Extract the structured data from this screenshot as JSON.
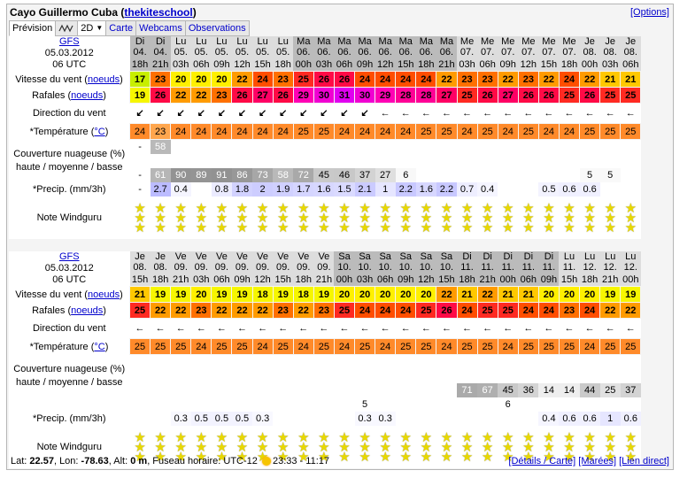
{
  "title": {
    "location": "Cayo Guillermo Cuba",
    "school": "thekiteschool",
    "options": "[Options]"
  },
  "toolbar": {
    "prevision": "Prévision",
    "mode": "2D",
    "carte": "Carte",
    "webcams": "Webcams",
    "observations": "Observations"
  },
  "labels": {
    "wind": "Vitesse du vent",
    "gust": "Rafales",
    "unit": "noeuds",
    "dir": "Direction du vent",
    "temp": "*Température",
    "temp_unit": "°C",
    "cloud_a": "Couverture nuageuse (%)",
    "cloud_b": "haute / moyenne / basse",
    "precip": "*Precip. (mm/3h)",
    "rating": "Note Windguru"
  },
  "sections": [
    {
      "model": "GFS",
      "date": "05.03.2012",
      "utc": "06 UTC",
      "days": [
        "Di",
        "Di",
        "Lu",
        "Lu",
        "Lu",
        "Lu",
        "Lu",
        "Lu",
        "Ma",
        "Ma",
        "Ma",
        "Ma",
        "Ma",
        "Ma",
        "Ma",
        "Ma",
        "Me",
        "Me",
        "Me",
        "Me",
        "Me",
        "Me",
        "Je",
        "Je",
        "Je"
      ],
      "dates": [
        "04.",
        "04.",
        "05.",
        "05.",
        "05.",
        "05.",
        "05.",
        "05.",
        "06.",
        "06.",
        "06.",
        "06.",
        "06.",
        "06.",
        "06.",
        "06.",
        "07.",
        "07.",
        "07.",
        "07.",
        "07.",
        "07.",
        "08.",
        "08.",
        "08."
      ],
      "hours": [
        "18h",
        "21h",
        "03h",
        "06h",
        "09h",
        "12h",
        "15h",
        "18h",
        "00h",
        "03h",
        "06h",
        "09h",
        "12h",
        "15h",
        "18h",
        "21h",
        "03h",
        "06h",
        "09h",
        "12h",
        "15h",
        "18h",
        "00h",
        "03h",
        "06h"
      ],
      "wind": [
        "17",
        "23",
        "20",
        "20",
        "20",
        "22",
        "24",
        "23",
        "25",
        "26",
        "26",
        "24",
        "24",
        "24",
        "24",
        "22",
        "23",
        "23",
        "22",
        "23",
        "22",
        "24",
        "22",
        "21",
        "21"
      ],
      "gust": [
        "19",
        "26",
        "22",
        "22",
        "23",
        "26",
        "27",
        "26",
        "29",
        "30",
        "31",
        "30",
        "29",
        "28",
        "28",
        "27",
        "25",
        "26",
        "27",
        "26",
        "26",
        "25",
        "26",
        "25",
        "25"
      ],
      "dir": [
        "↙",
        "↙",
        "↙",
        "↙",
        "↙",
        "↙",
        "↙",
        "↙",
        "↙",
        "↙",
        "↙",
        "↙",
        "←",
        "←",
        "←",
        "←",
        "←",
        "←",
        "←",
        "←",
        "←",
        "←",
        "←",
        "←",
        "←"
      ],
      "temp": [
        "24",
        "23",
        "24",
        "24",
        "24",
        "24",
        "24",
        "24",
        "25",
        "25",
        "24",
        "24",
        "24",
        "24",
        "25",
        "25",
        "24",
        "25",
        "24",
        "25",
        "24",
        "24",
        "25",
        "25",
        "25"
      ],
      "cloud_high": [
        "-",
        "58",
        "",
        "",
        "",
        "",
        "",
        "",
        "",
        "",
        "",
        "",
        "",
        "",
        "",
        "",
        "",
        "",
        "",
        "",
        "",
        "",
        "",
        "",
        ""
      ],
      "cloud_mid": [
        "",
        "",
        "",
        "",
        "",
        "",
        "",
        "",
        "",
        "",
        "",
        "",
        "",
        "",
        "",
        "",
        "",
        "",
        "",
        "",
        "",
        "",
        "",
        "",
        ""
      ],
      "cloud_low": [
        "-",
        "61",
        "90",
        "89",
        "91",
        "86",
        "73",
        "58",
        "72",
        "45",
        "46",
        "37",
        "27",
        "6",
        "",
        "",
        "",
        "",
        "",
        "",
        "",
        "",
        "5",
        "5",
        ""
      ],
      "precip": [
        "-",
        "2.7",
        "0.4",
        "",
        "0.8",
        "1.8",
        "2",
        "1.9",
        "1.7",
        "1.6",
        "1.5",
        "2.1",
        "1",
        "2.2",
        "1.6",
        "2.2",
        "0.7",
        "0.4",
        "",
        "",
        "0.5",
        "0.6",
        "0.6",
        "",
        ""
      ],
      "rating": [
        3,
        3,
        3,
        3,
        3,
        3,
        3,
        3,
        3,
        3,
        3,
        3,
        3,
        3,
        3,
        3,
        3,
        3,
        3,
        3,
        3,
        3,
        3,
        3,
        3
      ]
    },
    {
      "model": "GFS",
      "date": "05.03.2012",
      "utc": "06 UTC",
      "days": [
        "Je",
        "Je",
        "Ve",
        "Ve",
        "Ve",
        "Ve",
        "Ve",
        "Ve",
        "Ve",
        "Ve",
        "Sa",
        "Sa",
        "Sa",
        "Sa",
        "Sa",
        "Sa",
        "Di",
        "Di",
        "Di",
        "Di",
        "Di",
        "Lu",
        "Lu",
        "Lu",
        "Lu"
      ],
      "dates": [
        "08.",
        "08.",
        "09.",
        "09.",
        "09.",
        "09.",
        "09.",
        "09.",
        "09.",
        "09.",
        "10.",
        "10.",
        "10.",
        "10.",
        "10.",
        "10.",
        "11.",
        "11.",
        "11.",
        "11.",
        "11.",
        "11.",
        "12.",
        "12.",
        "12."
      ],
      "hours": [
        "15h",
        "18h",
        "21h",
        "03h",
        "06h",
        "09h",
        "12h",
        "15h",
        "18h",
        "21h",
        "00h",
        "03h",
        "06h",
        "09h",
        "12h",
        "15h",
        "18h",
        "21h",
        "00h",
        "06h",
        "09h",
        "15h",
        "18h",
        "21h",
        "00h"
      ],
      "wind": [
        "21",
        "19",
        "19",
        "20",
        "19",
        "19",
        "18",
        "19",
        "18",
        "19",
        "20",
        "20",
        "20",
        "20",
        "20",
        "22",
        "21",
        "22",
        "21",
        "21",
        "20",
        "20",
        "20",
        "19",
        "19"
      ],
      "gust": [
        "25",
        "22",
        "22",
        "23",
        "22",
        "22",
        "22",
        "23",
        "22",
        "23",
        "25",
        "24",
        "24",
        "24",
        "25",
        "26",
        "24",
        "25",
        "25",
        "24",
        "24",
        "23",
        "24",
        "22",
        "22"
      ],
      "dir": [
        "←",
        "←",
        "←",
        "←",
        "←",
        "←",
        "←",
        "←",
        "←",
        "←",
        "←",
        "←",
        "←",
        "←",
        "←",
        "←",
        "←",
        "←",
        "←",
        "←",
        "←",
        "←",
        "←",
        "←",
        "←"
      ],
      "temp": [
        "25",
        "25",
        "25",
        "24",
        "25",
        "25",
        "24",
        "25",
        "24",
        "25",
        "24",
        "25",
        "24",
        "25",
        "25",
        "24",
        "25",
        "25",
        "24",
        "25",
        "25",
        "25",
        "24",
        "25",
        "25"
      ],
      "cloud_high": [
        "",
        "",
        "",
        "",
        "",
        "",
        "",
        "",
        "",
        "",
        "",
        "",
        "",
        "",
        "",
        "",
        "",
        "",
        "",
        "",
        "",
        "",
        "",
        "",
        ""
      ],
      "cloud_mid": [
        "",
        "",
        "",
        "",
        "",
        "",
        "",
        "",
        "",
        "",
        "",
        "",
        "",
        "",
        "",
        "",
        "",
        "",
        "",
        "",
        "",
        "",
        "",
        "",
        ""
      ],
      "cloud_low": [
        "",
        "",
        "",
        "",
        "",
        "",
        "",
        "",
        "",
        "",
        "",
        "",
        "",
        "",
        "",
        "",
        "71",
        "67",
        "45",
        "36",
        "14",
        "14",
        "44",
        "25",
        "37"
      ],
      "cloud_extra": [
        "",
        "",
        "",
        "",
        "",
        "",
        "",
        "",
        "",
        "",
        "",
        "5",
        "",
        "",
        "",
        "",
        "",
        "",
        "6",
        "",
        "",
        "",
        "",
        "",
        ""
      ],
      "precip": [
        "",
        "",
        "0.3",
        "0.5",
        "0.5",
        "0.5",
        "0.3",
        "",
        "",
        "",
        "",
        "0.3",
        "0.3",
        "",
        "",
        "",
        "",
        "",
        "",
        "",
        "0.4",
        "0.6",
        "0.6",
        "1",
        "0.6"
      ],
      "rating": [
        3,
        3,
        3,
        3,
        3,
        3,
        3,
        3,
        3,
        3,
        3,
        3,
        3,
        3,
        3,
        3,
        3,
        3,
        3,
        3,
        3,
        3,
        3,
        3,
        3
      ]
    }
  ],
  "footer": {
    "lat_label": "Lat:",
    "lat": "22.57",
    "lon_label": ", Lon:",
    "lon": "-78.63",
    "alt_label": ", Alt:",
    "alt": "0 m",
    "tz": ", Fuseau horaire: UTC-12",
    "sun": "23:33 - 11:17",
    "details": "[Détails / Carte]",
    "marees": "[Marées]",
    "lien": "[Lien direct]"
  },
  "colors": {
    "accent": "#0000cc"
  }
}
